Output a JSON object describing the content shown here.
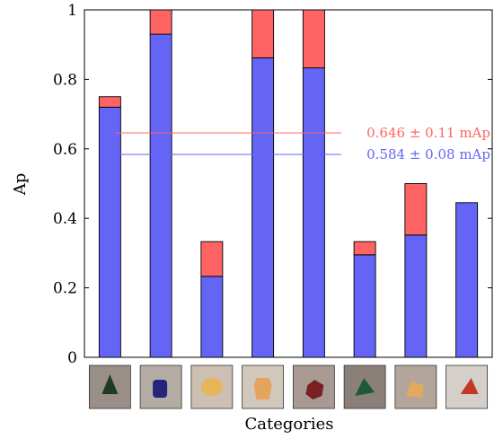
{
  "chart_data": {
    "type": "bar",
    "stacked": true,
    "categories": [
      "cone",
      "cylinder",
      "dome",
      "hexagonal prism",
      "cube",
      "pyramid",
      "triangular prism",
      "tetrahedron"
    ],
    "series": [
      {
        "values": [
          0.72,
          0.93,
          0.233,
          0.862,
          0.833,
          0.295,
          0.352,
          0.445
        ],
        "color": "#6464f5"
      },
      {
        "values": [
          0.03,
          0.07,
          0.1,
          0.138,
          0.167,
          0.038,
          0.148,
          0.0
        ],
        "color": "#ff6464"
      }
    ],
    "reference_lines": [
      {
        "y": 0.646,
        "label": "0.646 ± 0.11 mAp",
        "color": "#ff6464"
      },
      {
        "y": 0.584,
        "label": "0.584 ± 0.08 mAp",
        "color": "#6464f5"
      }
    ],
    "xlabel": "Categories",
    "ylabel": "Ap",
    "ylim": [
      0,
      1
    ],
    "yticks": [
      "0",
      "0.2",
      "0.4",
      "0.6",
      "0.8",
      "1"
    ],
    "x_tick_images": [
      {
        "object": "cone",
        "object_color": "#1f3a28",
        "bg_color": "#9a8f88"
      },
      {
        "object": "cylinder",
        "object_color": "#23247a",
        "bg_color": "#b4aba3"
      },
      {
        "object": "dome",
        "object_color": "#e7b55a",
        "bg_color": "#cdbfb1"
      },
      {
        "object": "hexagonal prism",
        "object_color": "#e5a45c",
        "bg_color": "#d2c7bb"
      },
      {
        "object": "cube",
        "object_color": "#7a1f22",
        "bg_color": "#a89a92"
      },
      {
        "object": "pyramid",
        "object_color": "#1e5a3a",
        "bg_color": "#8a8079"
      },
      {
        "object": "triangular prism",
        "object_color": "#e3a95e",
        "bg_color": "#b3a59a"
      },
      {
        "object": "tetrahedron",
        "object_color": "#c23a26",
        "bg_color": "#d5cfc9"
      }
    ]
  }
}
